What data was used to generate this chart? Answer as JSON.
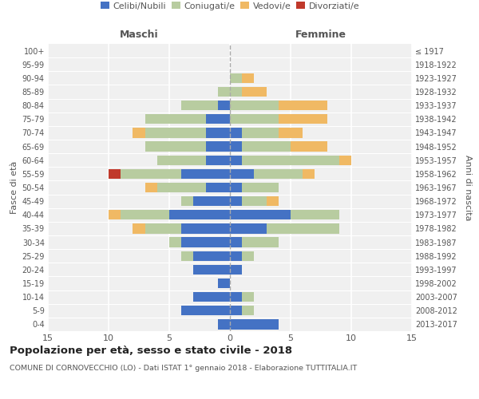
{
  "age_groups": [
    "100+",
    "95-99",
    "90-94",
    "85-89",
    "80-84",
    "75-79",
    "70-74",
    "65-69",
    "60-64",
    "55-59",
    "50-54",
    "45-49",
    "40-44",
    "35-39",
    "30-34",
    "25-29",
    "20-24",
    "15-19",
    "10-14",
    "5-9",
    "0-4"
  ],
  "birth_years": [
    "≤ 1917",
    "1918-1922",
    "1923-1927",
    "1928-1932",
    "1933-1937",
    "1938-1942",
    "1943-1947",
    "1948-1952",
    "1953-1957",
    "1958-1962",
    "1963-1967",
    "1968-1972",
    "1973-1977",
    "1978-1982",
    "1983-1987",
    "1988-1992",
    "1993-1997",
    "1998-2002",
    "2003-2007",
    "2008-2012",
    "2013-2017"
  ],
  "maschi_celibe": [
    0,
    0,
    0,
    0,
    1,
    2,
    2,
    2,
    2,
    4,
    2,
    3,
    5,
    4,
    4,
    3,
    3,
    1,
    3,
    4,
    1
  ],
  "maschi_coniugato": [
    0,
    0,
    0,
    1,
    3,
    5,
    5,
    5,
    4,
    5,
    4,
    1,
    4,
    3,
    1,
    1,
    0,
    0,
    0,
    0,
    0
  ],
  "maschi_vedovo": [
    0,
    0,
    0,
    0,
    0,
    0,
    1,
    0,
    0,
    0,
    1,
    0,
    1,
    1,
    0,
    0,
    0,
    0,
    0,
    0,
    0
  ],
  "maschi_divorziato": [
    0,
    0,
    0,
    0,
    0,
    0,
    0,
    0,
    0,
    1,
    0,
    0,
    0,
    0,
    0,
    0,
    0,
    0,
    0,
    0,
    0
  ],
  "femmine_celibe": [
    0,
    0,
    0,
    0,
    0,
    0,
    1,
    1,
    1,
    2,
    1,
    1,
    5,
    3,
    1,
    1,
    1,
    0,
    1,
    1,
    4
  ],
  "femmine_coniugata": [
    0,
    0,
    1,
    1,
    4,
    4,
    3,
    4,
    8,
    4,
    3,
    2,
    4,
    6,
    3,
    1,
    0,
    0,
    1,
    1,
    0
  ],
  "femmine_vedova": [
    0,
    0,
    1,
    2,
    4,
    4,
    2,
    3,
    1,
    1,
    0,
    1,
    0,
    0,
    0,
    0,
    0,
    0,
    0,
    0,
    0
  ],
  "femmine_divorziata": [
    0,
    0,
    0,
    0,
    0,
    0,
    0,
    0,
    0,
    0,
    0,
    0,
    0,
    0,
    0,
    0,
    0,
    0,
    0,
    0,
    0
  ],
  "colors": {
    "celibe": "#4472c4",
    "coniugato": "#b8cca0",
    "vedovo": "#f0b964",
    "divorziato": "#c0392b"
  },
  "xlim": 15,
  "title": "Popolazione per età, sesso e stato civile - 2018",
  "subtitle": "COMUNE DI CORNOVECCHIO (LO) - Dati ISTAT 1° gennaio 2018 - Elaborazione TUTTITALIA.IT",
  "ylabel_left": "Fasce di età",
  "ylabel_right": "Anni di nascita",
  "xlabel_left": "Maschi",
  "xlabel_right": "Femmine",
  "legend_labels": [
    "Celibi/Nubili",
    "Coniugati/e",
    "Vedovi/e",
    "Divorziati/e"
  ],
  "bg_color": "#f0f0f0"
}
